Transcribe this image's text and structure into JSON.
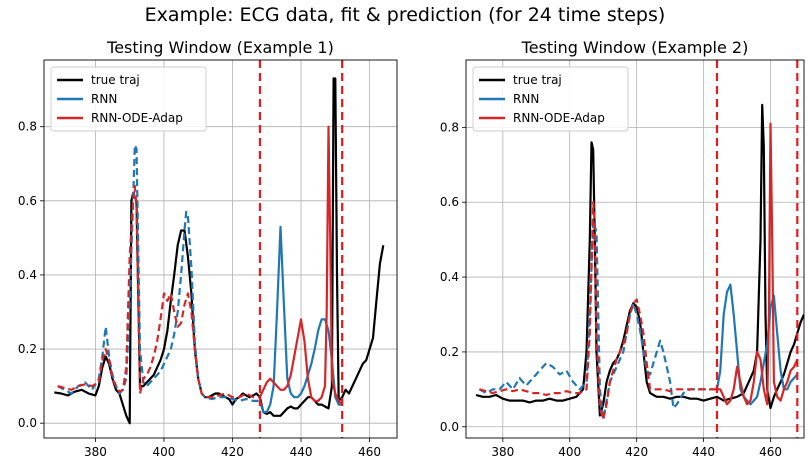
{
  "suptitle": "Example: ECG data, fit & prediction (for 24 time steps)",
  "colors": {
    "true": "#000000",
    "rnn": "#1f77b4",
    "ode": "#d62728",
    "vline": "#e41a1c",
    "grid": "#b0b0b0"
  },
  "chart_data": [
    {
      "type": "line",
      "title": "Testing Window (Example 1)",
      "xlabel": "",
      "ylabel": "",
      "xlim": [
        365,
        468
      ],
      "ylim": [
        -0.04,
        0.98
      ],
      "xticks": [
        380,
        400,
        420,
        440,
        460
      ],
      "yticks": [
        0.0,
        0.2,
        0.4,
        0.6,
        0.8
      ],
      "grid": true,
      "legend": "top-left",
      "vlines": [
        428,
        452
      ],
      "series": [
        {
          "name": "true traj",
          "color": "#000000",
          "style": "solid",
          "x": [
            368,
            370,
            372,
            374,
            376,
            378,
            380,
            381,
            382,
            383,
            384,
            385,
            386,
            387,
            388,
            389,
            390,
            390.5,
            391,
            392,
            393,
            394,
            395,
            396,
            397,
            398,
            399,
            400,
            401,
            402,
            403,
            404,
            405,
            406,
            407,
            408,
            409,
            410,
            411,
            412,
            413,
            414,
            415,
            416,
            417,
            418,
            419,
            420,
            421,
            422,
            423,
            424,
            425,
            426,
            427,
            428,
            429,
            430,
            431,
            432,
            433,
            434,
            435,
            436,
            437,
            438,
            439,
            440,
            441,
            442,
            443,
            444,
            445,
            446,
            447,
            448,
            449,
            449.5,
            450,
            450.5,
            451,
            452,
            453,
            454,
            455,
            456,
            457,
            458,
            459,
            460,
            461,
            462,
            463,
            464
          ],
          "y": [
            0.083,
            0.08,
            0.075,
            0.085,
            0.09,
            0.08,
            0.075,
            0.1,
            0.15,
            0.18,
            0.16,
            0.12,
            0.09,
            0.08,
            0.05,
            0.02,
            0.0,
            0.6,
            0.62,
            0.6,
            0.1,
            0.1,
            0.11,
            0.12,
            0.13,
            0.15,
            0.17,
            0.2,
            0.25,
            0.33,
            0.4,
            0.48,
            0.52,
            0.52,
            0.45,
            0.35,
            0.2,
            0.12,
            0.08,
            0.07,
            0.07,
            0.075,
            0.08,
            0.08,
            0.075,
            0.07,
            0.065,
            0.05,
            0.065,
            0.07,
            0.08,
            0.075,
            0.07,
            0.075,
            0.08,
            0.07,
            0.03,
            0.025,
            0.03,
            0.02,
            0.02,
            0.02,
            0.03,
            0.04,
            0.045,
            0.04,
            0.04,
            0.05,
            0.06,
            0.07,
            0.07,
            0.06,
            0.05,
            0.05,
            0.045,
            0.04,
            0.1,
            0.93,
            0.93,
            0.4,
            0.06,
            0.07,
            0.09,
            0.08,
            0.1,
            0.12,
            0.14,
            0.16,
            0.17,
            0.2,
            0.23,
            0.33,
            0.43,
            0.48
          ]
        },
        {
          "name": "RNN",
          "color": "#1f77b4",
          "style": "mixed",
          "split": 428,
          "x": [
            369,
            371,
            373,
            375,
            377,
            379,
            381,
            382,
            383,
            384,
            385,
            386,
            387,
            388,
            389,
            390,
            391,
            391.5,
            392,
            393,
            394,
            395,
            396,
            397,
            398,
            399,
            400,
            401,
            402,
            403,
            404,
            405,
            406,
            406.5,
            407,
            408,
            409,
            410,
            411,
            412,
            414,
            416,
            418,
            420,
            422,
            424,
            426,
            428,
            429,
            430,
            431,
            432,
            433,
            434,
            435,
            436,
            437,
            438,
            439,
            440,
            441,
            442,
            443,
            444,
            445,
            446,
            447,
            448,
            449,
            450,
            451,
            452
          ],
          "y": [
            0.1,
            0.09,
            0.08,
            0.1,
            0.11,
            0.09,
            0.12,
            0.18,
            0.26,
            0.18,
            0.13,
            0.1,
            0.08,
            0.09,
            0.12,
            0.33,
            0.6,
            0.75,
            0.74,
            0.2,
            0.11,
            0.1,
            0.11,
            0.12,
            0.13,
            0.14,
            0.16,
            0.18,
            0.2,
            0.24,
            0.3,
            0.4,
            0.52,
            0.57,
            0.56,
            0.42,
            0.22,
            0.12,
            0.08,
            0.07,
            0.065,
            0.07,
            0.07,
            0.065,
            0.06,
            0.065,
            0.06,
            0.06,
            0.03,
            0.03,
            0.05,
            0.1,
            0.3,
            0.53,
            0.32,
            0.12,
            0.08,
            0.07,
            0.07,
            0.08,
            0.1,
            0.13,
            0.16,
            0.2,
            0.25,
            0.28,
            0.28,
            0.25,
            0.17,
            0.07,
            0.05,
            0.05
          ]
        },
        {
          "name": "RNN-ODE-Adap",
          "color": "#d62728",
          "style": "mixed",
          "split": 428,
          "x": [
            369,
            371,
            373,
            375,
            377,
            379,
            381,
            382,
            383,
            384,
            385,
            386,
            387,
            388,
            389,
            390,
            391,
            391.5,
            392,
            393,
            394,
            395,
            396,
            397,
            398,
            399,
            400,
            401,
            402,
            403,
            404,
            405,
            406,
            407,
            408,
            409,
            410,
            411,
            412,
            414,
            416,
            418,
            420,
            422,
            424,
            426,
            428,
            429,
            430,
            431,
            432,
            433,
            434,
            435,
            436,
            437,
            438,
            439,
            440,
            441,
            442,
            443,
            444,
            445,
            446,
            447,
            447.5,
            448,
            448.5,
            449,
            450,
            451,
            452
          ],
          "y": [
            0.1,
            0.095,
            0.09,
            0.1,
            0.105,
            0.1,
            0.11,
            0.17,
            0.2,
            0.17,
            0.12,
            0.1,
            0.085,
            0.09,
            0.15,
            0.45,
            0.6,
            0.64,
            0.58,
            0.08,
            0.12,
            0.13,
            0.15,
            0.18,
            0.22,
            0.28,
            0.35,
            0.33,
            0.35,
            0.3,
            0.26,
            0.27,
            0.32,
            0.35,
            0.3,
            0.2,
            0.12,
            0.08,
            0.07,
            0.07,
            0.075,
            0.08,
            0.07,
            0.07,
            0.08,
            0.07,
            0.07,
            0.09,
            0.11,
            0.12,
            0.11,
            0.1,
            0.09,
            0.09,
            0.1,
            0.13,
            0.18,
            0.23,
            0.28,
            0.22,
            0.12,
            0.07,
            0.06,
            0.06,
            0.07,
            0.1,
            0.3,
            0.8,
            0.5,
            0.12,
            0.08,
            0.06,
            0.05
          ]
        }
      ]
    },
    {
      "type": "line",
      "title": "Testing Window (Example 2)",
      "xlabel": "",
      "ylabel": "",
      "xlim": [
        369,
        470
      ],
      "ylim": [
        -0.03,
        0.98
      ],
      "xticks": [
        380,
        400,
        420,
        440,
        460
      ],
      "yticks": [
        0.0,
        0.2,
        0.4,
        0.6,
        0.8
      ],
      "grid": true,
      "legend": "top-left",
      "vlines": [
        444,
        468
      ],
      "series": [
        {
          "name": "true traj",
          "color": "#000000",
          "style": "solid",
          "x": [
            372,
            374,
            376,
            378,
            380,
            382,
            384,
            386,
            388,
            390,
            392,
            394,
            396,
            398,
            400,
            402,
            404,
            405,
            406,
            406.5,
            407,
            407.5,
            408,
            409,
            410,
            411,
            412,
            413,
            414,
            415,
            416,
            417,
            418,
            419,
            420,
            421,
            422,
            423,
            424,
            425,
            426,
            428,
            430,
            432,
            434,
            436,
            438,
            440,
            442,
            444,
            446,
            448,
            450,
            452,
            453,
            454,
            455,
            456,
            457,
            457.5,
            458,
            458.5,
            459,
            460,
            461,
            462,
            463,
            464,
            465,
            466,
            467,
            468,
            469,
            470
          ],
          "y": [
            0.085,
            0.08,
            0.08,
            0.085,
            0.075,
            0.07,
            0.07,
            0.07,
            0.065,
            0.07,
            0.07,
            0.075,
            0.07,
            0.07,
            0.075,
            0.08,
            0.1,
            0.2,
            0.5,
            0.76,
            0.74,
            0.5,
            0.2,
            0.03,
            0.06,
            0.12,
            0.15,
            0.17,
            0.18,
            0.2,
            0.23,
            0.27,
            0.31,
            0.33,
            0.32,
            0.28,
            0.2,
            0.12,
            0.09,
            0.085,
            0.08,
            0.08,
            0.075,
            0.08,
            0.08,
            0.075,
            0.075,
            0.07,
            0.075,
            0.08,
            0.07,
            0.075,
            0.08,
            0.09,
            0.11,
            0.13,
            0.15,
            0.2,
            0.5,
            0.86,
            0.75,
            0.3,
            0.1,
            0.05,
            0.08,
            0.1,
            0.12,
            0.14,
            0.17,
            0.2,
            0.22,
            0.25,
            0.28,
            0.3
          ]
        },
        {
          "name": "RNN",
          "color": "#1f77b4",
          "style": "mixed",
          "split": 444,
          "x": [
            373,
            375,
            377,
            379,
            381,
            383,
            385,
            387,
            389,
            391,
            393,
            395,
            397,
            399,
            401,
            403,
            405,
            406,
            407,
            408,
            409,
            410,
            411,
            412,
            413,
            414,
            415,
            416,
            417,
            418,
            419,
            420,
            421,
            422,
            423,
            424,
            425,
            426,
            427,
            428,
            429,
            430,
            431,
            432,
            434,
            436,
            438,
            440,
            442,
            444,
            445,
            446,
            447,
            448,
            449,
            450,
            451,
            452,
            453,
            454,
            455,
            456,
            457,
            458,
            459,
            460,
            461,
            462,
            463,
            464,
            465,
            466,
            467,
            468
          ],
          "y": [
            0.1,
            0.09,
            0.1,
            0.1,
            0.12,
            0.1,
            0.13,
            0.11,
            0.13,
            0.15,
            0.17,
            0.16,
            0.14,
            0.15,
            0.12,
            0.1,
            0.12,
            0.3,
            0.55,
            0.52,
            0.1,
            0.02,
            0.07,
            0.12,
            0.14,
            0.16,
            0.18,
            0.2,
            0.25,
            0.3,
            0.33,
            0.3,
            0.26,
            0.2,
            0.15,
            0.14,
            0.17,
            0.2,
            0.23,
            0.2,
            0.16,
            0.12,
            0.05,
            0.06,
            0.09,
            0.1,
            0.1,
            0.1,
            0.1,
            0.1,
            0.15,
            0.3,
            0.36,
            0.38,
            0.3,
            0.2,
            0.1,
            0.08,
            0.07,
            0.06,
            0.07,
            0.08,
            0.12,
            0.17,
            0.22,
            0.32,
            0.35,
            0.25,
            0.15,
            0.1,
            0.1,
            0.12,
            0.13,
            0.14
          ]
        },
        {
          "name": "RNN-ODE-Adap",
          "color": "#d62728",
          "style": "mixed",
          "split": 444,
          "x": [
            373,
            375,
            377,
            379,
            381,
            383,
            385,
            387,
            389,
            391,
            393,
            395,
            397,
            399,
            401,
            403,
            405,
            406,
            407,
            407.5,
            408,
            409,
            410,
            411,
            412,
            413,
            414,
            415,
            416,
            417,
            418,
            419,
            420,
            421,
            422,
            423,
            424,
            426,
            428,
            430,
            432,
            434,
            436,
            438,
            440,
            442,
            444,
            445,
            446,
            447,
            448,
            449,
            450,
            451,
            452,
            453,
            454,
            455,
            456,
            457,
            458,
            459,
            459.5,
            460,
            460.5,
            461,
            462,
            463,
            464,
            465,
            466,
            467,
            468
          ],
          "y": [
            0.1,
            0.095,
            0.09,
            0.095,
            0.1,
            0.095,
            0.1,
            0.095,
            0.09,
            0.09,
            0.085,
            0.09,
            0.09,
            0.095,
            0.09,
            0.09,
            0.1,
            0.25,
            0.6,
            0.55,
            0.25,
            0.05,
            0.02,
            0.06,
            0.12,
            0.15,
            0.18,
            0.2,
            0.22,
            0.25,
            0.3,
            0.33,
            0.34,
            0.3,
            0.25,
            0.17,
            0.1,
            0.1,
            0.1,
            0.095,
            0.1,
            0.1,
            0.1,
            0.1,
            0.1,
            0.1,
            0.1,
            0.1,
            0.08,
            0.06,
            0.07,
            0.1,
            0.16,
            0.12,
            0.08,
            0.06,
            0.07,
            0.12,
            0.2,
            0.18,
            0.1,
            0.06,
            0.3,
            0.81,
            0.5,
            0.12,
            0.08,
            0.07,
            0.1,
            0.12,
            0.15,
            0.16,
            0.18
          ]
        }
      ]
    }
  ]
}
